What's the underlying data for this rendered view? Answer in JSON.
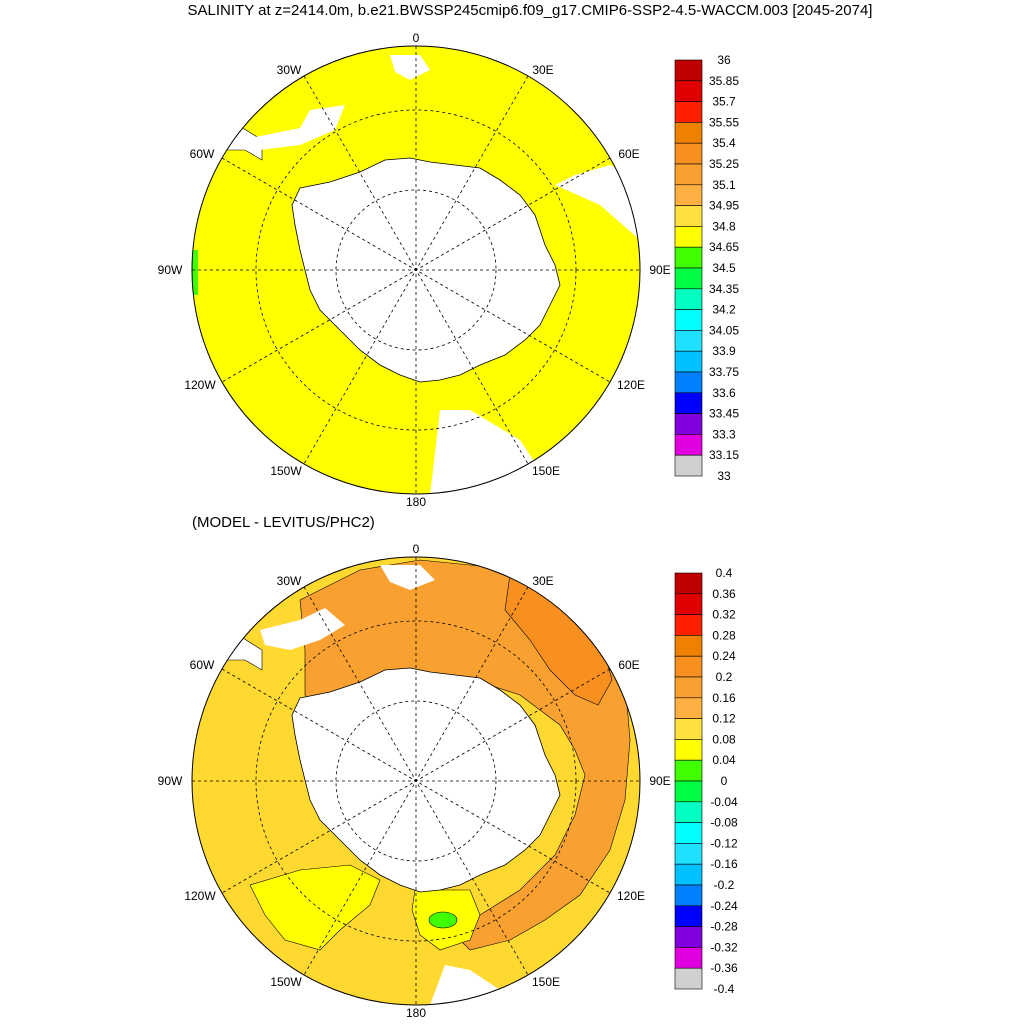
{
  "title": "SALINITY at z=2414.0m, b.e21.BWSSP245cmip6.f09_g17.CMIP6-SSP2-4.5-WACCM.003 [2045-2074]",
  "maps": [
    {
      "subtitle": "",
      "fill_color": "#ffff00",
      "lon_labels": {
        "0": "0",
        "30E": "30E",
        "60E": "60E",
        "90E": "90E",
        "120E": "120E",
        "150E": "150E",
        "180": "180",
        "150W": "150W",
        "120W": "120W",
        "90W": "90W",
        "60W": "60W",
        "30W": "30W"
      },
      "colorbar": {
        "labels": [
          "36",
          "35.85",
          "35.7",
          "35.55",
          "35.4",
          "35.25",
          "35.1",
          "34.95",
          "34.8",
          "34.65",
          "34.5",
          "34.35",
          "34.2",
          "34.05",
          "33.9",
          "33.75",
          "33.6",
          "33.45",
          "33.3",
          "33.15",
          "33"
        ],
        "colors": [
          "#c00000",
          "#e00000",
          "#ff2000",
          "#f08000",
          "#f89020",
          "#f8a030",
          "#ffb040",
          "#ffe040",
          "#ffff00",
          "#40ff00",
          "#00ff40",
          "#00ffc0",
          "#00ffff",
          "#20e0ff",
          "#00c0ff",
          "#0080ff",
          "#0000ff",
          "#8000e0",
          "#e000e0",
          "#d0d0d0",
          "#707070"
        ]
      }
    },
    {
      "subtitle": "(MODEL - LEVITUS/PHC2)",
      "fill_color": "#ffd830",
      "lon_labels": {
        "0": "0",
        "30E": "30E",
        "60E": "60E",
        "90E": "90E",
        "120E": "120E",
        "150E": "150E",
        "180": "180",
        "150W": "150W",
        "120W": "120W",
        "90W": "90W",
        "60W": "60W",
        "30W": "30W"
      },
      "colorbar": {
        "labels": [
          "0.4",
          "0.36",
          "0.32",
          "0.28",
          "0.24",
          "0.2",
          "0.16",
          "0.12",
          "0.08",
          "0.04",
          "0",
          "-0.04",
          "-0.08",
          "-0.12",
          "-0.16",
          "-0.2",
          "-0.24",
          "-0.28",
          "-0.32",
          "-0.36",
          "-0.4"
        ],
        "colors": [
          "#c00000",
          "#e00000",
          "#ff2000",
          "#f08000",
          "#f89020",
          "#f8a030",
          "#ffb040",
          "#ffe040",
          "#ffff00",
          "#40ff00",
          "#00ff40",
          "#00ffc0",
          "#00ffff",
          "#20e0ff",
          "#00c0ff",
          "#0080ff",
          "#0000ff",
          "#8000e0",
          "#e000e0",
          "#d0d0d0",
          "#707070"
        ]
      }
    }
  ]
}
